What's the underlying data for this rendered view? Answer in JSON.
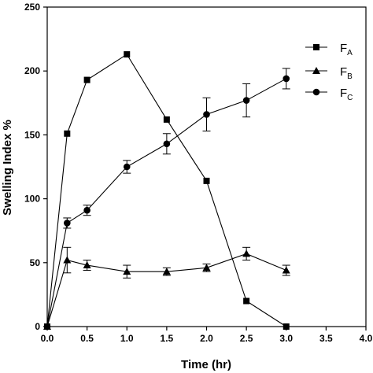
{
  "chart_data": {
    "type": "line",
    "title": "",
    "xlabel": "Time (hr)",
    "ylabel": "Swelling Index %",
    "xlim": [
      0,
      4
    ],
    "ylim": [
      0,
      250
    ],
    "xticks": [
      "0.0",
      "0.5",
      "1.0",
      "1.5",
      "2.0",
      "2.5",
      "3.0",
      "3.5",
      "4.0"
    ],
    "yticks": [
      "0",
      "50",
      "100",
      "150",
      "200",
      "250"
    ],
    "grid": false,
    "legend_position": "top-right",
    "series": [
      {
        "name": "F",
        "sub": "A",
        "marker": "square",
        "x": [
          0,
          0.25,
          0.5,
          1.0,
          1.5,
          2.0,
          2.5,
          3.0
        ],
        "y": [
          0,
          151,
          193,
          213,
          162,
          114,
          20,
          0
        ],
        "err": [
          0,
          0,
          0,
          0,
          0,
          0,
          0,
          0
        ]
      },
      {
        "name": "F",
        "sub": "B",
        "marker": "triangle",
        "x": [
          0,
          0.25,
          0.5,
          1.0,
          1.5,
          2.0,
          2.5,
          3.0
        ],
        "y": [
          0,
          52,
          48,
          43,
          43,
          46,
          57,
          44
        ],
        "err": [
          0,
          10,
          4,
          5,
          3,
          3,
          5,
          4
        ]
      },
      {
        "name": "F",
        "sub": "C",
        "marker": "circle",
        "x": [
          0,
          0.25,
          0.5,
          1.0,
          1.5,
          2.0,
          2.5,
          3.0
        ],
        "y": [
          0,
          81,
          91,
          125,
          143,
          166,
          177,
          194
        ],
        "err": [
          0,
          4,
          4,
          5,
          8,
          13,
          13,
          8
        ]
      }
    ]
  }
}
